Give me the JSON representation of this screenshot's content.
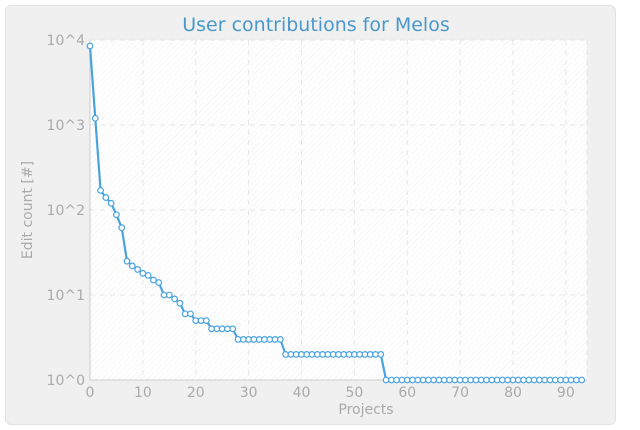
{
  "chart_data": {
    "type": "line",
    "title": "User contributions for Melos",
    "xlabel": "Projects",
    "ylabel": "Edit count [#]",
    "y_scale": "log",
    "xlim": [
      0,
      94
    ],
    "ylim": [
      1,
      10000
    ],
    "x_ticks": [
      0,
      10,
      20,
      30,
      40,
      50,
      60,
      70,
      80,
      90
    ],
    "y_ticks": [
      {
        "value": 1,
        "label": "10^0"
      },
      {
        "value": 10,
        "label": "10^1"
      },
      {
        "value": 100,
        "label": "10^2"
      },
      {
        "value": 1000,
        "label": "10^3"
      },
      {
        "value": 10000,
        "label": "10^4"
      }
    ],
    "grid": true,
    "line_color": "#4aa3df",
    "marker_fill": "#ffffff",
    "series": [
      {
        "x": [
          0,
          1,
          2,
          3,
          4,
          5,
          6,
          7,
          8,
          9,
          10,
          11,
          12,
          13,
          14,
          15,
          16,
          17,
          18,
          19,
          20,
          21,
          22,
          23,
          24,
          25,
          26,
          27,
          28,
          29,
          30,
          31,
          32,
          33,
          34,
          35,
          36,
          37,
          38,
          39,
          40,
          41,
          42,
          43,
          44,
          45,
          46,
          47,
          48,
          49,
          50,
          51,
          52,
          53,
          54,
          55,
          56,
          57,
          58,
          59,
          60,
          61,
          62,
          63,
          64,
          65,
          66,
          67,
          68,
          69,
          70,
          71,
          72,
          73,
          74,
          75,
          76,
          77,
          78,
          79,
          80,
          81,
          82,
          83,
          84,
          85,
          86,
          87,
          88,
          89,
          90,
          91,
          92,
          93
        ],
        "values": [
          8500,
          1200,
          170,
          140,
          120,
          88,
          62,
          25,
          22,
          20,
          18,
          17,
          15,
          14,
          10,
          10,
          9,
          8,
          6,
          6,
          5,
          5,
          5,
          4,
          4,
          4,
          4,
          4,
          3,
          3,
          3,
          3,
          3,
          3,
          3,
          3,
          3,
          2,
          2,
          2,
          2,
          2,
          2,
          2,
          2,
          2,
          2,
          2,
          2,
          2,
          2,
          2,
          2,
          2,
          2,
          2,
          1,
          1,
          1,
          1,
          1,
          1,
          1,
          1,
          1,
          1,
          1,
          1,
          1,
          1,
          1,
          1,
          1,
          1,
          1,
          1,
          1,
          1,
          1,
          1,
          1,
          1,
          1,
          1,
          1,
          1,
          1,
          1,
          1,
          1,
          1,
          1,
          1,
          1
        ]
      }
    ]
  }
}
